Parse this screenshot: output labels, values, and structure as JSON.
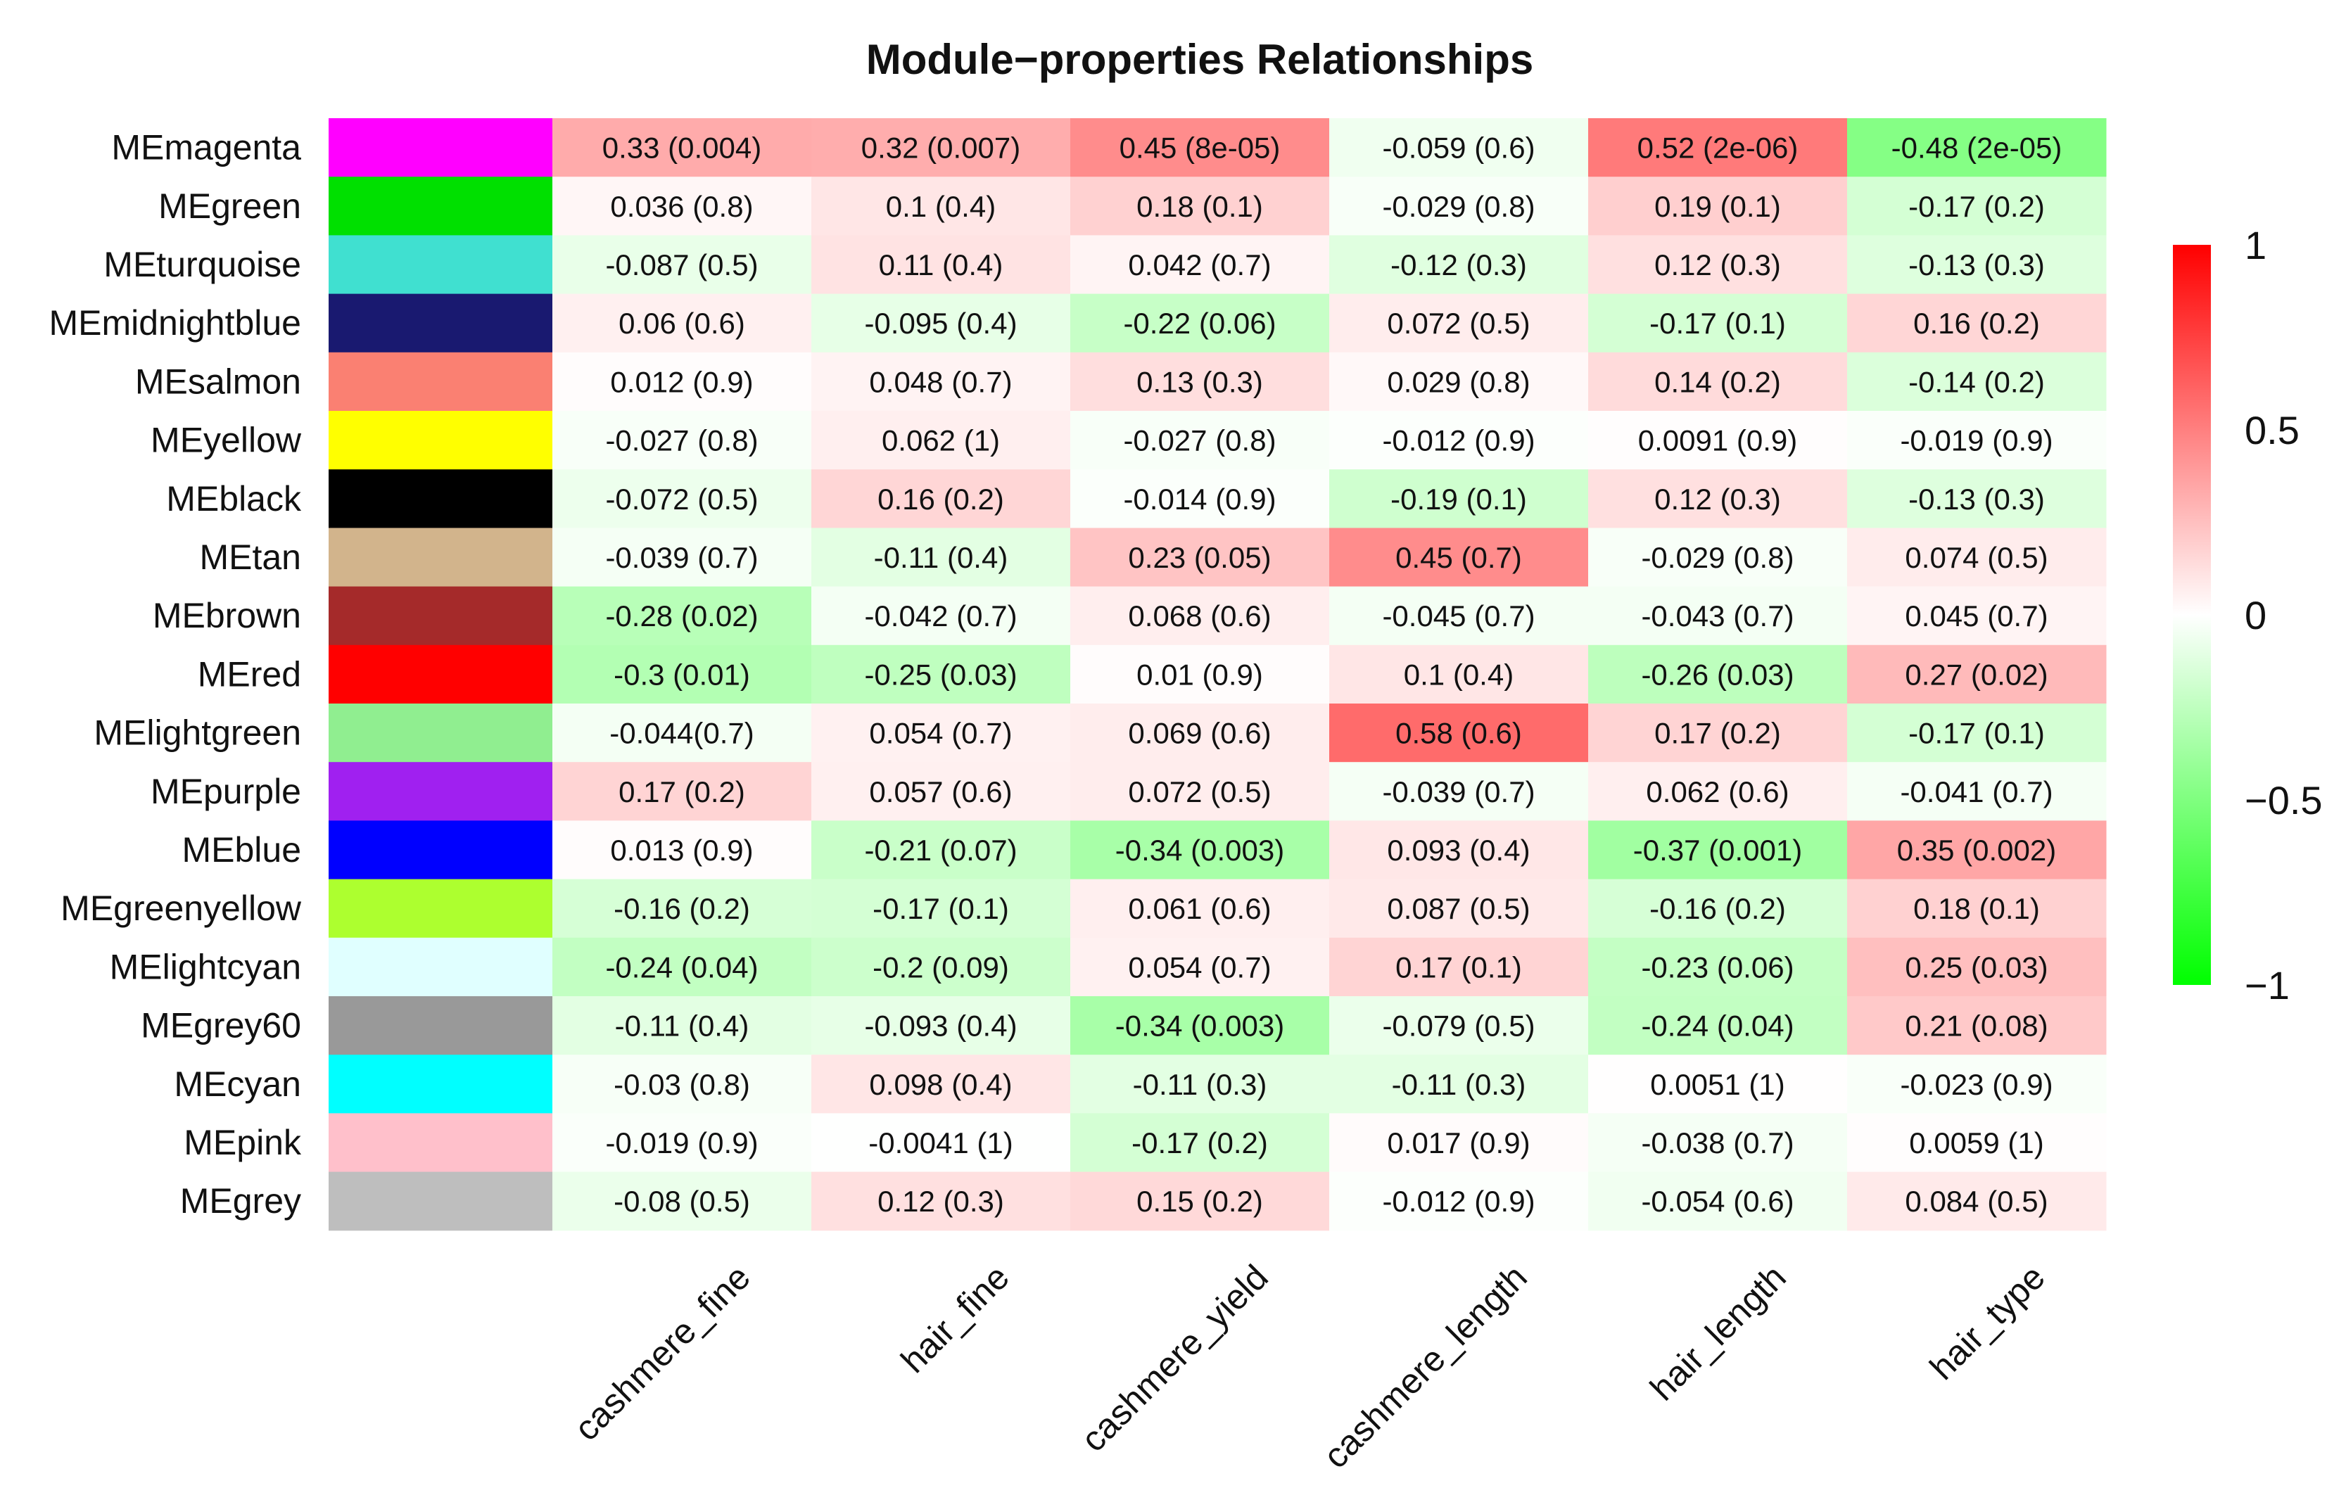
{
  "chart_data": {
    "type": "heatmap",
    "title": "Module−properties Relationships",
    "columns": [
      "cashmere_fine",
      "hair_fine",
      "cashmere_yield",
      "cashmere_length",
      "hair_length",
      "hair_type"
    ],
    "rows": [
      {
        "label": "MEmagenta",
        "color": "#ff00ff",
        "values": [
          0.33,
          0.32,
          0.45,
          -0.059,
          0.52,
          -0.48
        ],
        "texts": [
          "0.33 (0.004)",
          "0.32 (0.007)",
          "0.45 (8e-05)",
          "-0.059 (0.6)",
          "0.52 (2e-06)",
          "-0.48 (2e-05)"
        ]
      },
      {
        "label": "MEgreen",
        "color": "#00e000",
        "values": [
          0.036,
          0.1,
          0.18,
          -0.029,
          0.19,
          -0.17
        ],
        "texts": [
          "0.036 (0.8)",
          "0.1 (0.4)",
          "0.18 (0.1)",
          "-0.029 (0.8)",
          "0.19 (0.1)",
          "-0.17 (0.2)"
        ]
      },
      {
        "label": "MEturquoise",
        "color": "#40e0d0",
        "values": [
          -0.087,
          0.11,
          0.042,
          -0.12,
          0.12,
          -0.13
        ],
        "texts": [
          "-0.087 (0.5)",
          "0.11 (0.4)",
          "0.042 (0.7)",
          "-0.12 (0.3)",
          "0.12 (0.3)",
          "-0.13 (0.3)"
        ]
      },
      {
        "label": "MEmidnightblue",
        "color": "#191970",
        "values": [
          0.06,
          -0.095,
          -0.22,
          0.072,
          -0.17,
          0.16
        ],
        "texts": [
          "0.06 (0.6)",
          "-0.095 (0.4)",
          "-0.22 (0.06)",
          "0.072 (0.5)",
          "-0.17 (0.1)",
          "0.16 (0.2)"
        ]
      },
      {
        "label": "MEsalmon",
        "color": "#fa8072",
        "values": [
          0.012,
          0.048,
          0.13,
          0.029,
          0.14,
          -0.14
        ],
        "texts": [
          "0.012 (0.9)",
          "0.048 (0.7)",
          "0.13 (0.3)",
          "0.029 (0.8)",
          "0.14 (0.2)",
          "-0.14 (0.2)"
        ]
      },
      {
        "label": "MEyellow",
        "color": "#ffff00",
        "values": [
          -0.027,
          0.062,
          -0.027,
          -0.012,
          0.0091,
          -0.019
        ],
        "texts": [
          "-0.027 (0.8)",
          "0.062 (1)",
          "-0.027 (0.8)",
          "-0.012 (0.9)",
          "0.0091 (0.9)",
          "-0.019 (0.9)"
        ]
      },
      {
        "label": "MEblack",
        "color": "#000000",
        "values": [
          -0.072,
          0.16,
          -0.014,
          -0.19,
          0.12,
          -0.13
        ],
        "texts": [
          "-0.072 (0.5)",
          "0.16 (0.2)",
          "-0.014 (0.9)",
          "-0.19 (0.1)",
          "0.12 (0.3)",
          "-0.13 (0.3)"
        ]
      },
      {
        "label": "MEtan",
        "color": "#d2b48c",
        "values": [
          -0.039,
          -0.11,
          0.23,
          0.45,
          -0.029,
          0.074
        ],
        "texts": [
          "-0.039 (0.7)",
          "-0.11 (0.4)",
          "0.23 (0.05)",
          "0.45 (0.7)",
          "-0.029 (0.8)",
          "0.074 (0.5)"
        ]
      },
      {
        "label": "MEbrown",
        "color": "#a52a2a",
        "values": [
          -0.28,
          -0.042,
          0.068,
          -0.045,
          -0.043,
          0.045
        ],
        "texts": [
          "-0.28 (0.02)",
          "-0.042 (0.7)",
          "0.068 (0.6)",
          "-0.045 (0.7)",
          "-0.043 (0.7)",
          "0.045 (0.7)"
        ]
      },
      {
        "label": "MEred",
        "color": "#ff0000",
        "values": [
          -0.3,
          -0.25,
          0.01,
          0.1,
          -0.26,
          0.27
        ],
        "texts": [
          "-0.3 (0.01)",
          "-0.25 (0.03)",
          "0.01 (0.9)",
          "0.1 (0.4)",
          "-0.26 (0.03)",
          "0.27 (0.02)"
        ]
      },
      {
        "label": "MElightgreen",
        "color": "#90ee90",
        "values": [
          -0.044,
          0.054,
          0.069,
          0.58,
          0.17,
          -0.17
        ],
        "texts": [
          "-0.044(0.7)",
          "0.054 (0.7)",
          "0.069 (0.6)",
          "0.58 (0.6)",
          "0.17 (0.2)",
          "-0.17 (0.1)"
        ]
      },
      {
        "label": "MEpurple",
        "color": "#a020f0",
        "values": [
          0.17,
          0.057,
          0.072,
          -0.039,
          0.062,
          -0.041
        ],
        "texts": [
          "0.17 (0.2)",
          "0.057 (0.6)",
          "0.072 (0.5)",
          "-0.039 (0.7)",
          "0.062 (0.6)",
          "-0.041 (0.7)"
        ]
      },
      {
        "label": "MEblue",
        "color": "#0000ff",
        "values": [
          0.013,
          -0.21,
          -0.34,
          0.093,
          -0.37,
          0.35
        ],
        "texts": [
          "0.013 (0.9)",
          "-0.21 (0.07)",
          "-0.34 (0.003)",
          "0.093 (0.4)",
          "-0.37 (0.001)",
          "0.35 (0.002)"
        ]
      },
      {
        "label": "MEgreenyellow",
        "color": "#adff2f",
        "values": [
          -0.16,
          -0.17,
          0.061,
          0.087,
          -0.16,
          0.18
        ],
        "texts": [
          "-0.16 (0.2)",
          "-0.17 (0.1)",
          "0.061 (0.6)",
          "0.087 (0.5)",
          "-0.16 (0.2)",
          "0.18 (0.1)"
        ]
      },
      {
        "label": "MElightcyan",
        "color": "#e0ffff",
        "values": [
          -0.24,
          -0.2,
          0.054,
          0.17,
          -0.23,
          0.25
        ],
        "texts": [
          "-0.24 (0.04)",
          "-0.2 (0.09)",
          "0.054 (0.7)",
          "0.17 (0.1)",
          "-0.23 (0.06)",
          "0.25 (0.03)"
        ]
      },
      {
        "label": "MEgrey60",
        "color": "#999999",
        "values": [
          -0.11,
          -0.093,
          -0.34,
          -0.079,
          -0.24,
          0.21
        ],
        "texts": [
          "-0.11 (0.4)",
          "-0.093 (0.4)",
          "-0.34 (0.003)",
          "-0.079 (0.5)",
          "-0.24 (0.04)",
          "0.21 (0.08)"
        ]
      },
      {
        "label": "MEcyan",
        "color": "#00ffff",
        "values": [
          -0.03,
          0.098,
          -0.11,
          -0.11,
          0.0051,
          -0.023
        ],
        "texts": [
          "-0.03 (0.8)",
          "0.098 (0.4)",
          "-0.11 (0.3)",
          "-0.11 (0.3)",
          "0.0051 (1)",
          "-0.023 (0.9)"
        ]
      },
      {
        "label": "MEpink",
        "color": "#ffc0cb",
        "values": [
          -0.019,
          -0.0041,
          -0.17,
          0.017,
          -0.038,
          0.0059
        ],
        "texts": [
          "-0.019 (0.9)",
          "-0.0041 (1)",
          "-0.17 (0.2)",
          "0.017 (0.9)",
          "-0.038 (0.7)",
          "0.0059 (1)"
        ]
      },
      {
        "label": "MEgrey",
        "color": "#bebebe",
        "values": [
          -0.08,
          0.12,
          0.15,
          -0.012,
          -0.054,
          0.084
        ],
        "texts": [
          "-0.08 (0.5)",
          "0.12 (0.3)",
          "0.15 (0.2)",
          "-0.012 (0.9)",
          "-0.054 (0.6)",
          "0.084 (0.5)"
        ]
      }
    ],
    "colorscale": {
      "min": -1,
      "max": 1,
      "low_color": "#00ff00",
      "mid_color": "#ffffff",
      "high_color": "#ff0000",
      "ticks": [
        1,
        0.5,
        0,
        -0.5,
        -1
      ],
      "tick_labels": [
        "1",
        "0.5",
        "0",
        "−0.5",
        "−1"
      ]
    }
  }
}
